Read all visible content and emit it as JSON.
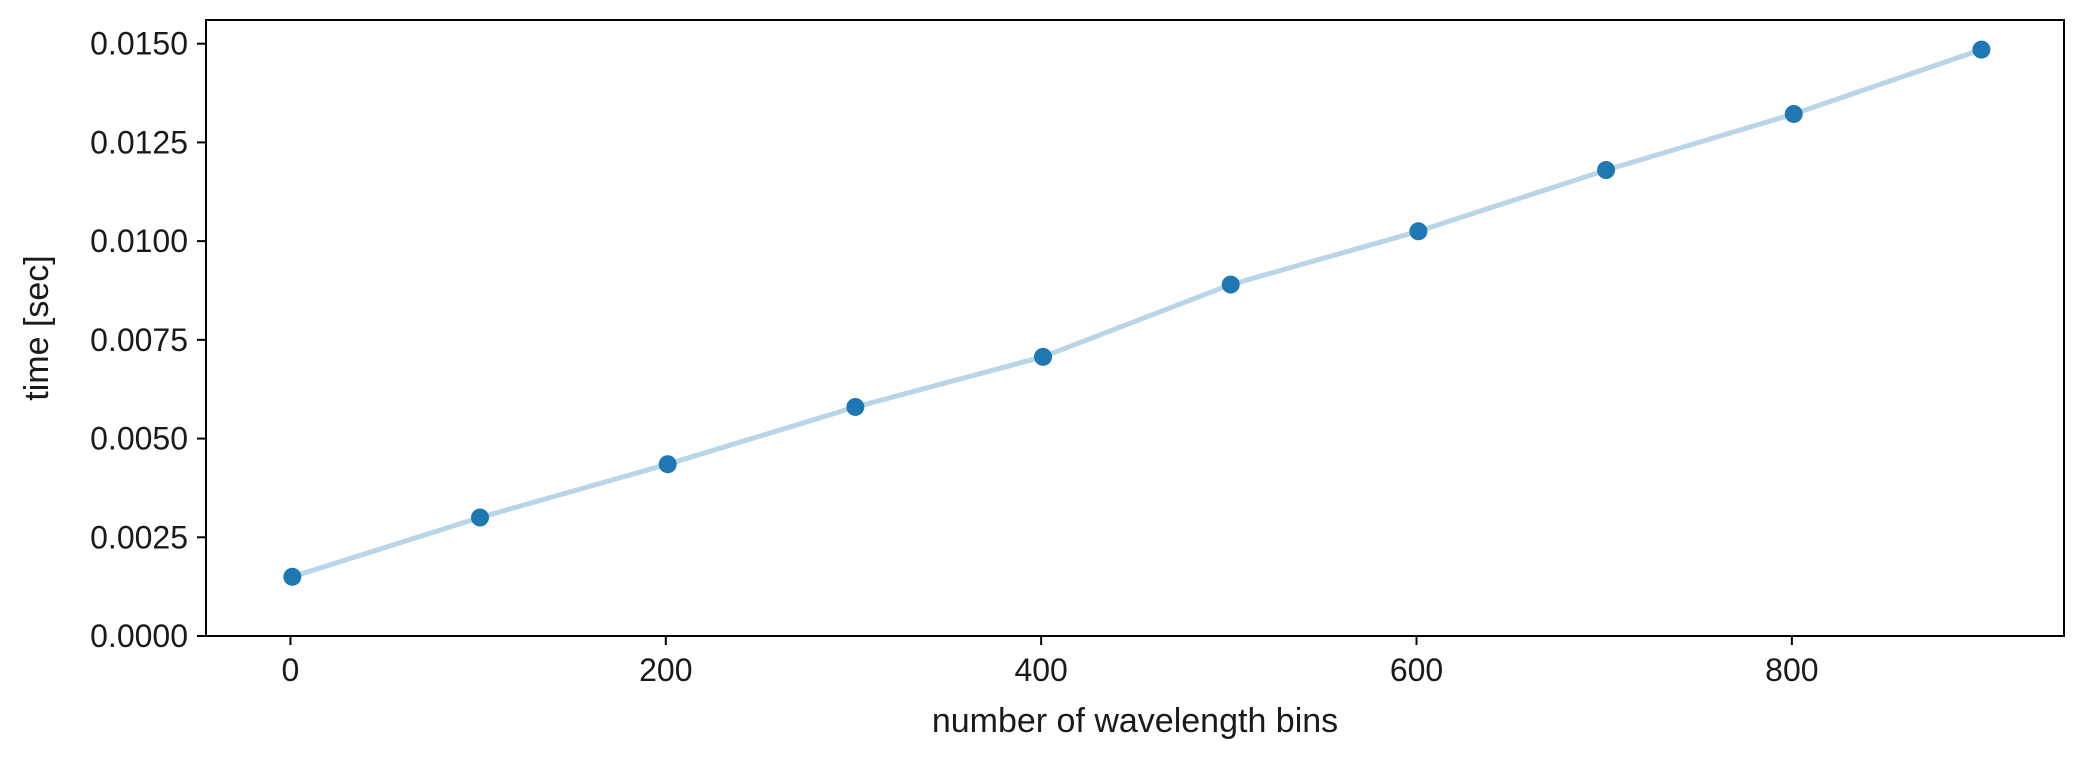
{
  "chart_data": {
    "type": "line",
    "xlabel": "number of wavelength bins",
    "ylabel": "time [sec]",
    "xlim": [
      -45,
      945
    ],
    "ylim": [
      0,
      0.0156
    ],
    "x_ticks": [
      0,
      200,
      400,
      600,
      800
    ],
    "x_tick_labels": [
      "0",
      "200",
      "400",
      "600",
      "800"
    ],
    "y_ticks": [
      0,
      0.0025,
      0.005,
      0.0075,
      0.01,
      0.0125,
      0.015
    ],
    "y_tick_labels": [
      "0.0000",
      "0.0025",
      "0.0050",
      "0.0075",
      "0.0100",
      "0.0125",
      "0.0150"
    ],
    "grid": false,
    "series": [
      {
        "x": [
          1,
          101,
          201,
          301,
          401,
          501,
          601,
          701,
          801,
          901
        ],
        "y": [
          0.0015,
          0.003,
          0.00435,
          0.0058,
          0.00707,
          0.0089,
          0.01025,
          0.0118,
          0.01322,
          0.01485
        ],
        "line_color": "#b9d5e8",
        "marker_color": "#1f77b4"
      }
    ]
  }
}
